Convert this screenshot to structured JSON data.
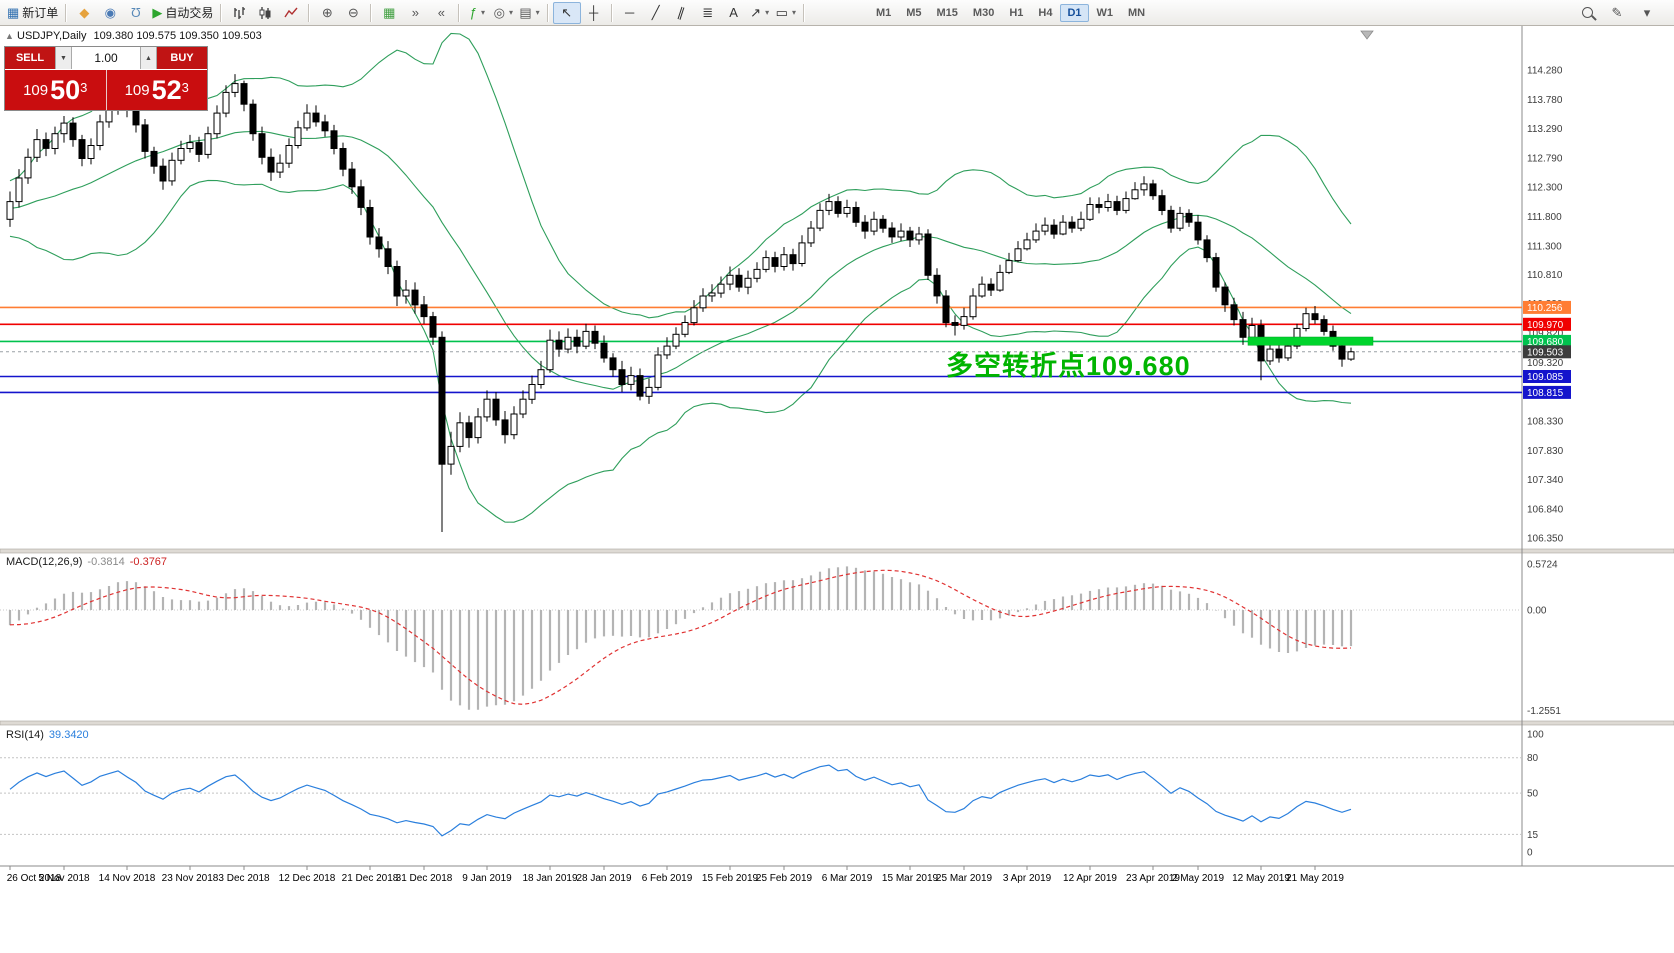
{
  "toolbar": {
    "items": [
      {
        "kind": "btn",
        "name": "new-order-button",
        "glyph": "▦",
        "glyph_color": "#2f6fb0",
        "label": "新订单"
      },
      {
        "kind": "sep"
      },
      {
        "kind": "btn",
        "name": "market-icon-button",
        "glyph": "◆",
        "glyph_color": "#e6a23c"
      },
      {
        "kind": "btn",
        "name": "community-icon-button",
        "glyph": "◉",
        "glyph_color": "#4a7ab5"
      },
      {
        "kind": "btn",
        "name": "headset-icon-button",
        "glyph": "Ω",
        "glyph_color": "#5a8ab8",
        "cls": "flip"
      },
      {
        "kind": "btn",
        "name": "algo-trading-button",
        "glyph": "▶",
        "glyph_color": "#2da52d",
        "label": "自动交易"
      },
      {
        "kind": "sep"
      },
      {
        "kind": "svg-bars",
        "name": "bar-chart-button"
      },
      {
        "kind": "svg-candles",
        "name": "candlestick-chart-button"
      },
      {
        "kind": "svg-line",
        "name": "line-chart-button"
      },
      {
        "kind": "sep"
      },
      {
        "kind": "btn",
        "name": "zoom-in-button",
        "glyph": "⊕",
        "glyph_color": "#555"
      },
      {
        "kind": "btn",
        "name": "zoom-out-button",
        "glyph": "⊖",
        "glyph_color": "#555"
      },
      {
        "kind": "sep"
      },
      {
        "kind": "btn",
        "name": "grid-button",
        "glyph": "▦",
        "glyph_color": "#3f9f3f"
      },
      {
        "kind": "btn",
        "name": "auto-scroll-button",
        "glyph": "»",
        "glyph_color": "#555"
      },
      {
        "kind": "btn",
        "name": "chart-shift-button",
        "glyph": "«",
        "glyph_color": "#555"
      },
      {
        "kind": "sep"
      },
      {
        "kind": "btn",
        "name": "indicators-button",
        "glyph": "ƒ",
        "glyph_color": "#2da52d",
        "caret": true
      },
      {
        "kind": "btn",
        "name": "objects-button",
        "glyph": "◎",
        "glyph_color": "#555",
        "caret": true
      },
      {
        "kind": "btn",
        "name": "templates-button",
        "glyph": "▤",
        "glyph_color": "#555",
        "caret": true
      },
      {
        "kind": "sep"
      },
      {
        "kind": "btn",
        "name": "cursor-button",
        "glyph": "↖",
        "glyph_color": "#333",
        "active": true
      },
      {
        "kind": "btn",
        "name": "crosshair-button",
        "glyph": "┼",
        "glyph_color": "#333"
      },
      {
        "kind": "sep"
      },
      {
        "kind": "btn",
        "name": "horizontal-line-button",
        "glyph": "─",
        "glyph_color": "#333"
      },
      {
        "kind": "btn",
        "name": "trendline-button",
        "glyph": "╱",
        "glyph_color": "#333"
      },
      {
        "kind": "btn",
        "name": "channel-button",
        "glyph": "∥",
        "glyph_color": "#333",
        "cls": "tilt"
      },
      {
        "kind": "btn",
        "name": "fibonacci-button",
        "glyph": "≣",
        "glyph_color": "#333"
      },
      {
        "kind": "btn",
        "name": "text-button",
        "glyph": "A",
        "glyph_color": "#333"
      },
      {
        "kind": "btn",
        "name": "arrows-button",
        "glyph": "↗",
        "glyph_color": "#333",
        "caret": true
      },
      {
        "kind": "btn",
        "name": "shapes-button",
        "glyph": "▭",
        "glyph_color": "#333",
        "caret": true
      },
      {
        "kind": "sep"
      }
    ],
    "timeframes": [
      "M1",
      "M5",
      "M15",
      "M30",
      "H1",
      "H4",
      "D1",
      "W1",
      "MN"
    ],
    "active_timeframe": "D1",
    "right_items": [
      {
        "kind": "css-search",
        "name": "search-button"
      },
      {
        "kind": "btn",
        "name": "quick-draw-button",
        "glyph": "✎",
        "glyph_color": "#555"
      },
      {
        "kind": "btn",
        "name": "toolbar-more-button",
        "glyph": "▾",
        "glyph_color": "#555"
      }
    ]
  },
  "chart": {
    "collapse_glyph": "▲",
    "symbol_title": "USDJPY,Daily",
    "ohlc_text": "109.380 109.575 109.350 109.503"
  },
  "trade_widget": {
    "sell_label": "SELL",
    "buy_label": "BUY",
    "volume": "1.00",
    "vol_down_glyph": "▼",
    "vol_up_glyph": "▲",
    "sell_price": {
      "prefix": "109",
      "big": "50",
      "sup": "3"
    },
    "buy_price": {
      "prefix": "109",
      "big": "52",
      "sup": "3"
    }
  },
  "price_axis": {
    "ticks": [
      "114.280",
      "113.780",
      "113.290",
      "112.790",
      "112.300",
      "111.800",
      "111.300",
      "110.810",
      "110.320",
      "109.820",
      "109.320",
      "108.820",
      "108.330",
      "107.830",
      "107.340",
      "106.840",
      "106.350"
    ]
  },
  "hlines": [
    {
      "price": 110.256,
      "label": "110.256",
      "color": "#ff7d33"
    },
    {
      "price": 109.97,
      "label": "109.970",
      "color": "#f00000"
    },
    {
      "price": 109.68,
      "label": "109.680",
      "color": "#00c24e"
    },
    {
      "price": 109.085,
      "label": "109.085",
      "color": "#1414cc"
    },
    {
      "price": 108.815,
      "label": "108.815",
      "color": "#1414cc"
    }
  ],
  "current_price": {
    "label": "109.503",
    "price": 109.503,
    "box_color": "#3c3c3c",
    "line_color": "#9aa0a6"
  },
  "highlight_band": {
    "price_top": 109.755,
    "price_bottom": 109.615,
    "start_index": 138,
    "end_index": 151,
    "color": "#00d42c"
  },
  "annotation": {
    "text": "多空转折点109.680",
    "color": "#00b400",
    "candle_index": 104,
    "price": 109.33
  },
  "chart_data": {
    "type": "candlestick",
    "symbol": "USDJPY",
    "timeframe": "Daily",
    "title": "USDJPY,Daily",
    "ylim": [
      106.35,
      114.28
    ],
    "grid": false,
    "open_first": 111.75,
    "closes": [
      112.05,
      112.45,
      112.8,
      113.1,
      112.95,
      113.2,
      113.38,
      113.1,
      112.78,
      113.0,
      113.4,
      113.62,
      113.85,
      113.6,
      113.35,
      112.9,
      112.65,
      112.4,
      112.75,
      112.95,
      113.05,
      112.85,
      113.2,
      113.55,
      113.9,
      114.05,
      113.7,
      113.2,
      112.8,
      112.55,
      112.7,
      113.0,
      113.3,
      113.55,
      113.4,
      113.25,
      112.95,
      112.6,
      112.3,
      111.95,
      111.45,
      111.25,
      110.95,
      110.45,
      110.55,
      110.3,
      110.1,
      109.75,
      107.6,
      107.9,
      108.3,
      108.05,
      108.4,
      108.7,
      108.35,
      108.1,
      108.45,
      108.7,
      108.95,
      109.2,
      109.7,
      109.55,
      109.75,
      109.6,
      109.85,
      109.65,
      109.4,
      109.2,
      108.95,
      109.1,
      108.75,
      108.9,
      109.45,
      109.6,
      109.8,
      110.0,
      110.25,
      110.45,
      110.5,
      110.65,
      110.8,
      110.6,
      110.75,
      110.9,
      111.1,
      110.95,
      111.15,
      111.0,
      111.35,
      111.6,
      111.9,
      112.05,
      111.85,
      111.95,
      111.7,
      111.55,
      111.75,
      111.6,
      111.45,
      111.55,
      111.4,
      111.5,
      110.8,
      110.45,
      110.0,
      109.95,
      110.1,
      110.45,
      110.65,
      110.55,
      110.85,
      111.05,
      111.25,
      111.4,
      111.55,
      111.65,
      111.5,
      111.7,
      111.6,
      111.75,
      112.0,
      111.95,
      112.05,
      111.9,
      112.1,
      112.25,
      112.35,
      112.15,
      111.9,
      111.6,
      111.85,
      111.7,
      111.4,
      111.1,
      110.6,
      110.3,
      110.05,
      109.75,
      109.95,
      109.35,
      109.55,
      109.4,
      109.6,
      109.9,
      110.15,
      110.05,
      109.85,
      109.6,
      109.38,
      109.503
    ],
    "highs": [
      112.22,
      112.6,
      112.95,
      113.28,
      113.22,
      113.32,
      113.5,
      113.48,
      113.18,
      113.12,
      113.52,
      113.75,
      114.03,
      113.98,
      113.72,
      113.45,
      112.98,
      112.78,
      112.88,
      113.08,
      113.18,
      113.15,
      113.32,
      113.68,
      114.02,
      114.21,
      114.1,
      113.78,
      113.32,
      112.95,
      112.85,
      113.12,
      113.42,
      113.7,
      113.68,
      113.52,
      113.35,
      113.05,
      112.72,
      112.42,
      112.08,
      111.6,
      111.38,
      111.05,
      110.72,
      110.68,
      110.45,
      110.18,
      109.85,
      108.15,
      108.48,
      108.42,
      108.55,
      108.85,
      108.82,
      108.5,
      108.58,
      108.85,
      109.1,
      109.35,
      109.88,
      109.85,
      109.9,
      109.88,
      109.98,
      109.95,
      109.78,
      109.48,
      109.35,
      109.25,
      109.22,
      109.05,
      109.58,
      109.75,
      109.92,
      110.12,
      110.38,
      110.58,
      110.65,
      110.78,
      110.95,
      110.92,
      110.88,
      111.02,
      111.22,
      111.2,
      111.28,
      111.25,
      111.48,
      111.72,
      112.02,
      112.18,
      112.14,
      112.08,
      112.05,
      111.82,
      111.88,
      111.82,
      111.7,
      111.68,
      111.62,
      111.62,
      111.58,
      110.92,
      110.55,
      110.12,
      110.25,
      110.58,
      110.78,
      110.75,
      110.98,
      111.18,
      111.38,
      111.52,
      111.68,
      111.78,
      111.75,
      111.82,
      111.8,
      111.88,
      112.12,
      112.12,
      112.18,
      112.15,
      112.22,
      112.38,
      112.48,
      112.42,
      112.25,
      111.98,
      111.96,
      111.92,
      111.82,
      111.48,
      111.18,
      110.68,
      110.42,
      110.18,
      110.08,
      110.05,
      109.68,
      109.72,
      109.72,
      109.98,
      110.25,
      110.28,
      110.12,
      109.95,
      109.68,
      109.575
    ],
    "lows": [
      111.62,
      111.95,
      112.35,
      112.72,
      112.82,
      112.85,
      113.05,
      112.98,
      112.65,
      112.68,
      112.92,
      113.3,
      113.52,
      113.48,
      113.22,
      112.78,
      112.52,
      112.25,
      112.32,
      112.68,
      112.88,
      112.72,
      112.78,
      113.12,
      113.48,
      113.82,
      113.58,
      113.08,
      112.68,
      112.4,
      112.45,
      112.62,
      112.95,
      113.25,
      113.32,
      113.15,
      112.85,
      112.48,
      112.18,
      111.82,
      111.32,
      111.1,
      110.82,
      110.28,
      110.32,
      110.15,
      109.98,
      109.62,
      106.45,
      107.42,
      107.8,
      107.88,
      107.95,
      108.32,
      108.25,
      107.95,
      108.02,
      108.38,
      108.62,
      108.88,
      109.15,
      109.42,
      109.48,
      109.48,
      109.55,
      109.55,
      109.32,
      109.08,
      108.82,
      108.85,
      108.68,
      108.62,
      108.85,
      109.38,
      109.55,
      109.75,
      109.95,
      110.18,
      110.35,
      110.42,
      110.55,
      110.52,
      110.48,
      110.68,
      110.85,
      110.85,
      110.88,
      110.88,
      110.95,
      111.28,
      111.55,
      111.82,
      111.78,
      111.78,
      111.62,
      111.42,
      111.48,
      111.52,
      111.35,
      111.38,
      111.28,
      111.32,
      110.72,
      110.32,
      109.92,
      109.78,
      109.88,
      110.05,
      110.42,
      110.45,
      110.52,
      110.82,
      111.02,
      111.22,
      111.35,
      111.48,
      111.42,
      111.48,
      111.52,
      111.55,
      111.72,
      111.85,
      111.88,
      111.82,
      111.85,
      112.08,
      112.15,
      112.08,
      111.82,
      111.52,
      111.55,
      111.62,
      111.32,
      111.02,
      110.52,
      110.18,
      109.95,
      109.62,
      109.68,
      109.02,
      109.28,
      109.32,
      109.35,
      109.55,
      109.85,
      109.98,
      109.78,
      109.52,
      109.25,
      109.35
    ],
    "seed_closes": [
      111.2,
      111.5,
      111.9,
      112.3,
      112.7,
      113.1,
      113.5,
      113.8,
      114.1,
      114.3,
      114.45,
      114.3,
      114.1,
      113.85,
      113.6,
      113.35,
      113.1,
      112.85,
      112.6,
      112.4,
      112.2,
      112.0,
      111.8,
      111.95,
      112.15,
      112.35,
      112.2,
      112.0,
      111.85,
      111.7,
      111.9,
      112.1,
      112.3,
      112.15,
      111.95,
      111.8,
      111.6,
      111.45,
      111.6,
      111.75
    ],
    "date_labels": [
      {
        "label": "26 Oct 2018",
        "index": 0
      },
      {
        "label": "5 Nov 2018",
        "index": 6
      },
      {
        "label": "14 Nov 2018",
        "index": 13
      },
      {
        "label": "23 Nov 2018",
        "index": 20
      },
      {
        "label": "3 Dec 2018",
        "index": 26
      },
      {
        "label": "12 Dec 2018",
        "index": 33
      },
      {
        "label": "21 Dec 2018",
        "index": 40
      },
      {
        "label": "31 Dec 2018",
        "index": 46
      },
      {
        "label": "9 Jan 2019",
        "index": 53
      },
      {
        "label": "18 Jan 2019",
        "index": 60
      },
      {
        "label": "28 Jan 2019",
        "index": 66
      },
      {
        "label": "6 Feb 2019",
        "index": 73
      },
      {
        "label": "15 Feb 2019",
        "index": 80
      },
      {
        "label": "25 Feb 2019",
        "index": 86
      },
      {
        "label": "6 Mar 2019",
        "index": 93
      },
      {
        "label": "15 Mar 2019",
        "index": 100
      },
      {
        "label": "25 Mar 2019",
        "index": 106
      },
      {
        "label": "3 Apr 2019",
        "index": 113
      },
      {
        "label": "12 Apr 2019",
        "index": 120
      },
      {
        "label": "23 Apr 2019",
        "index": 127
      },
      {
        "label": "2 May 2019",
        "index": 132
      },
      {
        "label": "12 May 2019",
        "index": 139
      },
      {
        "label": "21 May 2019",
        "index": 145
      }
    ],
    "indicators": {
      "bollinger": {
        "period": 20,
        "deviation": 2,
        "color": "#2e9e5b"
      },
      "macd": {
        "label": "MACD(12,26,9)",
        "value": "-0.3814",
        "signal_value": "-0.3767",
        "hist_color": "#b4b4b4",
        "signal_color": "#e03232",
        "axis_ticks": [
          {
            "label": "0.5724",
            "value": 0.5724
          },
          {
            "label": "0.00",
            "value": 0
          },
          {
            "label": "-1.2551",
            "value": -1.2551
          }
        ]
      },
      "rsi": {
        "label": "RSI(14)",
        "value": "39.3420",
        "color": "#2a7fdd",
        "levels": [
          80,
          50,
          15
        ],
        "axis_ticks": [
          {
            "label": "100",
            "value": 100
          },
          {
            "label": "80",
            "value": 80
          },
          {
            "label": "50",
            "value": 50
          },
          {
            "label": "15",
            "value": 15
          },
          {
            "label": "0",
            "value": 0
          }
        ]
      }
    }
  }
}
